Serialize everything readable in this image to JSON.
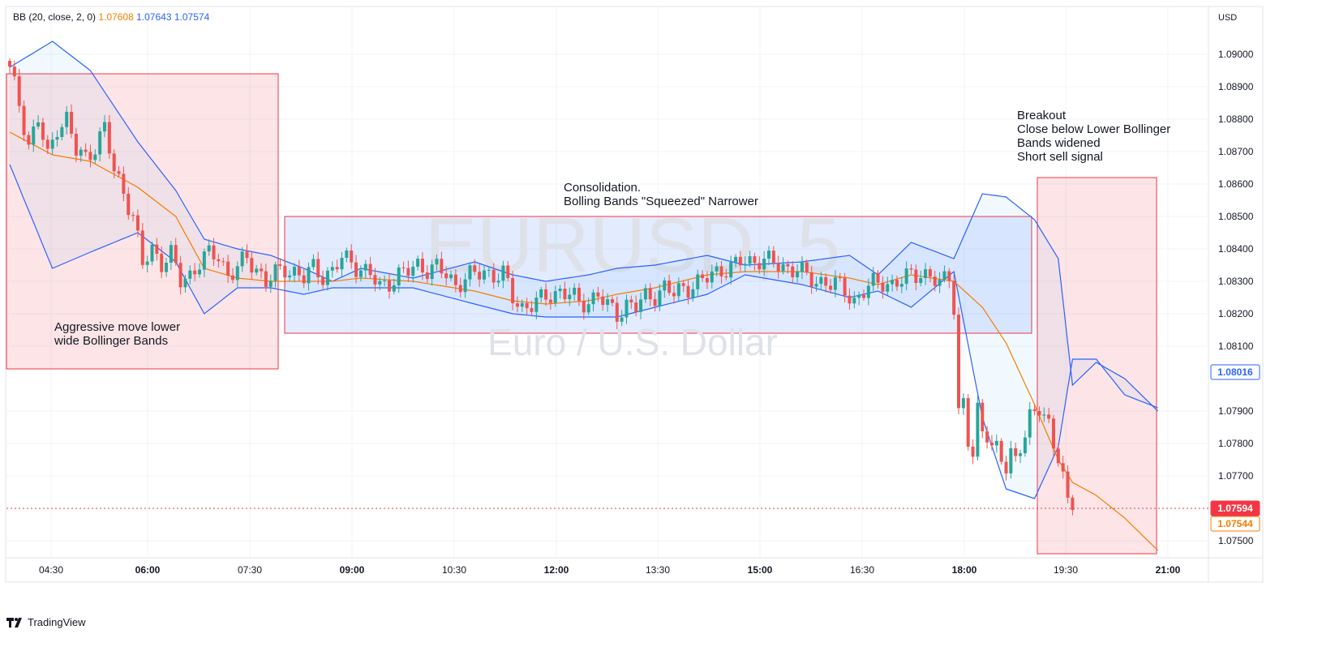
{
  "legend": {
    "indicator": "BB (20, close, 2, 0)",
    "basis": "1.07608",
    "upper": "1.07643",
    "lower": "1.07574"
  },
  "watermark": {
    "symbol": "EURUSD, 5",
    "description": "Euro / U.S. Dollar"
  },
  "currency": "USD",
  "branding": "TradingView",
  "colors": {
    "up": "#26a69a",
    "down": "#ef5350",
    "band": "#2962ff",
    "basis": "#f57c00"
  },
  "chart_data": {
    "type": "candlestick",
    "y_ticks": [
      "1.09000",
      "1.08900",
      "1.08800",
      "1.08700",
      "1.08600",
      "1.08500",
      "1.08400",
      "1.08300",
      "1.08200",
      "1.08100",
      "1.07900",
      "1.07800",
      "1.07700",
      "1.07500"
    ],
    "x_ticks": [
      "04:30",
      "06:00",
      "07:30",
      "09:00",
      "10:30",
      "12:00",
      "13:30",
      "15:00",
      "16:30",
      "18:00",
      "19:30",
      "21:00"
    ],
    "ylim": [
      1.0744,
      1.0916
    ],
    "price_labels": {
      "last": "1.07594",
      "basis": "1.07544",
      "upper": "1.08016"
    },
    "annotations": [
      {
        "lines": [
          "Aggressive move lower",
          "wide Bollinger Bands"
        ]
      },
      {
        "lines": [
          "Consolidation.",
          "Bolling Bands \"Squeezed\" Narrower"
        ]
      },
      {
        "lines": [
          "Breakout",
          "Close below Lower Bollinger",
          "Bands widened",
          "Short sell signal"
        ]
      }
    ],
    "regions": [
      {
        "color": "red",
        "y_top": 1.0894,
        "y_bottom": 1.0803
      },
      {
        "color": "blue",
        "y_top": 1.085,
        "y_bottom": 1.0814
      },
      {
        "color": "red",
        "y_top": 1.0862,
        "y_bottom": 1.0746
      }
    ],
    "key_points": [
      [
        0,
        1.0896,
        1.0876,
        1.0866
      ],
      [
        9,
        1.0904,
        1.0869,
        1.0834
      ],
      [
        17,
        1.0895,
        1.0867,
        1.0839
      ],
      [
        27,
        1.0873,
        1.0859,
        1.0845
      ],
      [
        35,
        1.0858,
        1.085,
        1.0836
      ],
      [
        41,
        1.0843,
        1.0834,
        1.082
      ],
      [
        48,
        1.084,
        1.0831,
        1.0828
      ],
      [
        55,
        1.0838,
        1.083,
        1.0828
      ],
      [
        62,
        1.0834,
        1.083,
        1.0826
      ],
      [
        68,
        1.083,
        1.083,
        1.0828
      ],
      [
        74,
        1.0834,
        1.0831,
        1.0828
      ],
      [
        85,
        1.0831,
        1.083,
        1.0828
      ],
      [
        98,
        1.0836,
        1.0827,
        1.0823
      ],
      [
        106,
        1.0832,
        1.0824,
        1.082
      ],
      [
        113,
        1.083,
        1.0823,
        1.0819
      ],
      [
        122,
        1.0832,
        1.0824,
        1.0819
      ],
      [
        128,
        1.0834,
        1.0826,
        1.0819
      ],
      [
        136,
        1.0835,
        1.0828,
        1.0822
      ],
      [
        147,
        1.0838,
        1.0832,
        1.0826
      ],
      [
        155,
        1.0835,
        1.0833,
        1.0832
      ],
      [
        167,
        1.0836,
        1.0833,
        1.0829
      ],
      [
        177,
        1.0838,
        1.0831,
        1.0825
      ],
      [
        183,
        1.0832,
        1.0829,
        1.0827
      ],
      [
        190,
        1.0842,
        1.0832,
        1.0822
      ],
      [
        199,
        1.0837,
        1.083,
        1.0833
      ],
      [
        205,
        1.0857,
        1.0822,
        1.0788
      ],
      [
        210,
        1.0856,
        1.0811,
        1.0766
      ],
      [
        216,
        1.0849,
        1.0792,
        1.0763
      ],
      [
        221,
        1.0837,
        1.0775,
        1.0779
      ],
      [
        224,
        1.0798,
        1.0768,
        1.0806
      ],
      [
        229,
        1.0805,
        1.0764,
        1.0806
      ],
      [
        235,
        1.08,
        1.0757,
        1.0795
      ],
      [
        242,
        1.079,
        1.0747,
        1.0791
      ]
    ],
    "candle_path": [
      [
        0,
        1.0895
      ],
      [
        2,
        1.0885
      ],
      [
        4,
        1.0872
      ],
      [
        6,
        1.088
      ],
      [
        8,
        1.0868
      ],
      [
        10,
        1.0878
      ],
      [
        12,
        1.088
      ],
      [
        14,
        1.087
      ],
      [
        16,
        1.0868
      ],
      [
        18,
        1.0872
      ],
      [
        20,
        1.0877
      ],
      [
        22,
        1.0864
      ],
      [
        24,
        1.0858
      ],
      [
        26,
        1.085
      ],
      [
        28,
        1.0835
      ],
      [
        30,
        1.084
      ],
      [
        32,
        1.0836
      ],
      [
        34,
        1.0838
      ],
      [
        36,
        1.083
      ],
      [
        38,
        1.0832
      ],
      [
        40,
        1.0836
      ],
      [
        42,
        1.0838
      ],
      [
        44,
        1.0838
      ],
      [
        46,
        1.0832
      ],
      [
        48,
        1.0834
      ],
      [
        50,
        1.0837
      ],
      [
        52,
        1.0834
      ],
      [
        54,
        1.083
      ],
      [
        56,
        1.0832
      ],
      [
        58,
        1.0834
      ],
      [
        60,
        1.0833
      ],
      [
        62,
        1.0831
      ],
      [
        64,
        1.0834
      ],
      [
        66,
        1.0832
      ],
      [
        68,
        1.0833
      ],
      [
        70,
        1.0837
      ],
      [
        72,
        1.0836
      ],
      [
        74,
        1.0834
      ],
      [
        76,
        1.0832
      ],
      [
        78,
        1.0828
      ],
      [
        80,
        1.083
      ],
      [
        82,
        1.0832
      ],
      [
        84,
        1.0833
      ],
      [
        86,
        1.0835
      ],
      [
        88,
        1.0834
      ],
      [
        90,
        1.0834
      ],
      [
        92,
        1.0832
      ],
      [
        94,
        1.0829
      ],
      [
        96,
        1.0831
      ],
      [
        98,
        1.0832
      ],
      [
        100,
        1.0833
      ],
      [
        102,
        1.0832
      ],
      [
        104,
        1.0832
      ],
      [
        106,
        1.0825
      ],
      [
        108,
        1.0822
      ],
      [
        110,
        1.0823
      ],
      [
        112,
        1.0824
      ],
      [
        114,
        1.0826
      ],
      [
        116,
        1.0827
      ],
      [
        118,
        1.0826
      ],
      [
        120,
        1.0823
      ],
      [
        122,
        1.0824
      ],
      [
        124,
        1.0826
      ],
      [
        126,
        1.0822
      ],
      [
        128,
        1.082
      ],
      [
        130,
        1.0823
      ],
      [
        132,
        1.0822
      ],
      [
        134,
        1.0825
      ],
      [
        136,
        1.0826
      ],
      [
        138,
        1.0828
      ],
      [
        140,
        1.0826
      ],
      [
        142,
        1.0828
      ],
      [
        144,
        1.0829
      ],
      [
        146,
        1.083
      ],
      [
        148,
        1.0832
      ],
      [
        150,
        1.0834
      ],
      [
        152,
        1.0834
      ],
      [
        154,
        1.0836
      ],
      [
        156,
        1.0836
      ],
      [
        158,
        1.0837
      ],
      [
        160,
        1.0836
      ],
      [
        162,
        1.0835
      ],
      [
        164,
        1.0834
      ],
      [
        166,
        1.0834
      ],
      [
        168,
        1.0831
      ],
      [
        170,
        1.083
      ],
      [
        172,
        1.083
      ],
      [
        174,
        1.0829
      ],
      [
        176,
        1.0827
      ],
      [
        178,
        1.0824
      ],
      [
        180,
        1.0827
      ],
      [
        182,
        1.0829
      ],
      [
        184,
        1.083
      ],
      [
        186,
        1.0829
      ],
      [
        188,
        1.083
      ],
      [
        190,
        1.0832
      ],
      [
        192,
        1.0833
      ],
      [
        194,
        1.0831
      ],
      [
        196,
        1.0829
      ],
      [
        198,
        1.0832
      ],
      [
        199,
        1.0823
      ],
      [
        200,
        1.079
      ],
      [
        201,
        1.0792
      ],
      [
        202,
        1.078
      ],
      [
        203,
        1.0776
      ],
      [
        204,
        1.079
      ],
      [
        205,
        1.0784
      ],
      [
        206,
        1.0784
      ],
      [
        207,
        1.078
      ],
      [
        208,
        1.0778
      ],
      [
        209,
        1.0774
      ],
      [
        210,
        1.0772
      ],
      [
        211,
        1.0777
      ],
      [
        212,
        1.0775
      ],
      [
        213,
        1.078
      ],
      [
        214,
        1.0784
      ],
      [
        215,
        1.0788
      ],
      [
        216,
        1.0788
      ],
      [
        217,
        1.079
      ],
      [
        218,
        1.0789
      ],
      [
        219,
        1.0786
      ],
      [
        220,
        1.078
      ],
      [
        221,
        1.0777
      ],
      [
        222,
        1.077
      ],
      [
        223,
        1.076
      ],
      [
        224,
        1.076
      ]
    ]
  }
}
